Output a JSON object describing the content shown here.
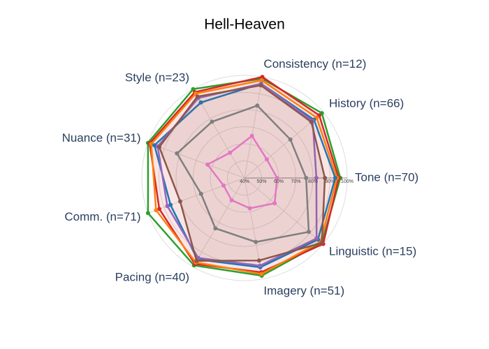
{
  "chart_data": {
    "type": "radar",
    "title": "Hell-Heaven",
    "categories": [
      "Tone (n=70)",
      "History (n=66)",
      "Consistency (n=12)",
      "Style (n=23)",
      "Nuance (n=31)",
      "Comm. (n=71)",
      "Pacing (n=40)",
      "Imagery (n=51)",
      "Linguistic (n=15)"
    ],
    "rlim": [
      40,
      100
    ],
    "rticks": [
      {
        "value": 40,
        "label": "40%"
      },
      {
        "value": 50,
        "label": "50%"
      },
      {
        "value": 60,
        "label": "60%"
      },
      {
        "value": 70,
        "label": "70%"
      },
      {
        "value": 80,
        "label": "80%"
      },
      {
        "value": 90,
        "label": "90%"
      },
      {
        "value": 100,
        "label": "100%"
      }
    ],
    "series": [
      {
        "color": "#2ca02c",
        "values": [
          96,
          99,
          99,
          100,
          100,
          100,
          99,
          98,
          99
        ]
      },
      {
        "color": "#d62728",
        "values": [
          95,
          97,
          100,
          98,
          99,
          93,
          98,
          96,
          100
        ],
        "fill": true
      },
      {
        "color": "#ff7f0e",
        "values": [
          94,
          95,
          98,
          97,
          98,
          95,
          97,
          97,
          98
        ]
      },
      {
        "color": "#1f77b4",
        "values": [
          93,
          93,
          96,
          91,
          96,
          86,
          95,
          93,
          96
        ]
      },
      {
        "color": "#9467bd",
        "values": [
          82,
          92,
          96,
          94,
          94,
          88,
          94,
          92,
          95
        ]
      },
      {
        "color": "#8c564b",
        "values": [
          87,
          91,
          95,
          95,
          93,
          80,
          96,
          89,
          99
        ],
        "fill": true
      },
      {
        "color": "#7f7f7f",
        "values": [
          76,
          75,
          83,
          78,
          82,
          67,
          74,
          78,
          89
        ]
      },
      {
        "color": "#e377c2",
        "values": [
          59,
          57,
          65,
          57,
          63,
          53,
          55,
          58,
          63
        ]
      }
    ]
  }
}
